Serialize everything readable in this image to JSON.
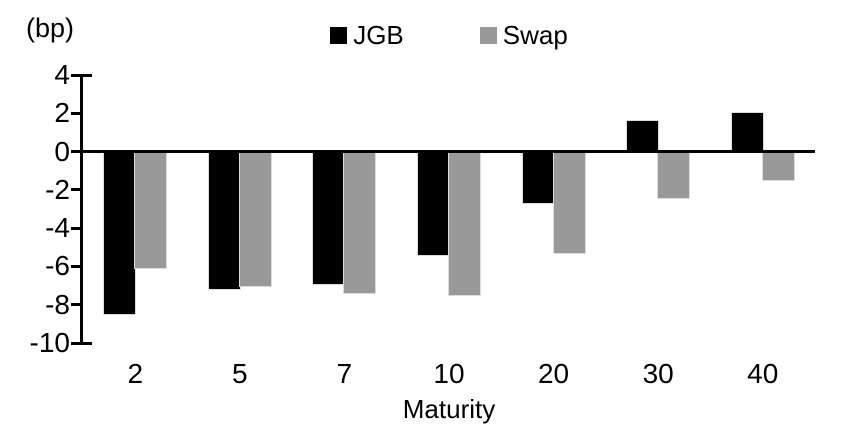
{
  "chart_data": {
    "type": "bar",
    "unit_label": "(bp)",
    "xlabel": "Maturity",
    "categories": [
      "2",
      "5",
      "7",
      "10",
      "20",
      "30",
      "40"
    ],
    "series": [
      {
        "name": "JGB",
        "color": "#000000",
        "values": [
          -8.5,
          -7.2,
          -6.9,
          -5.4,
          -2.7,
          1.6,
          2.0
        ]
      },
      {
        "name": "Swap",
        "color": "#999999",
        "values": [
          -6.1,
          -7.0,
          -7.4,
          -7.5,
          -5.3,
          -2.4,
          -1.5
        ]
      }
    ],
    "ylim": [
      -10,
      4
    ],
    "yticks": [
      4,
      2,
      0,
      -2,
      -4,
      -6,
      -8,
      -10
    ],
    "grid": false,
    "legend_position": "top-center",
    "axis_color": "#000000"
  }
}
